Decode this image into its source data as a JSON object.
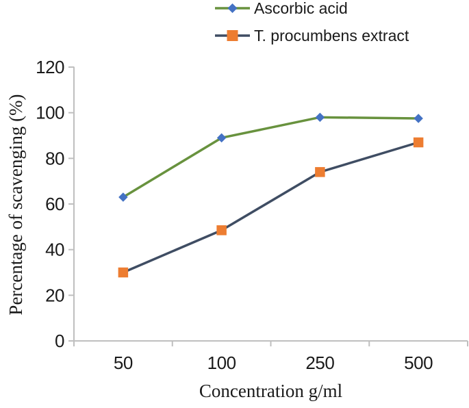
{
  "figure": {
    "background": "#ffffff"
  },
  "legend": {
    "position": "top",
    "items": [
      {
        "label": "Ascorbic acid",
        "marker": "diamond"
      },
      {
        "label": "T. procumbens extract",
        "marker": "square"
      }
    ]
  },
  "chart_data": {
    "type": "line",
    "title": "",
    "xlabel": "Concentration g/ml",
    "ylabel": "Percentage of scavenging (%)",
    "categories": [
      "50",
      "100",
      "250",
      "500"
    ],
    "series": [
      {
        "name": "Ascorbic acid",
        "values": [
          63,
          89,
          98,
          97.5
        ],
        "line_color": "#68923e",
        "marker": "diamond",
        "marker_color": "#4472c4"
      },
      {
        "name": "T. procumbens extract",
        "values": [
          30,
          48.5,
          74,
          87
        ],
        "line_color": "#3f4d63",
        "marker": "square",
        "marker_color": "#ed7d31"
      }
    ],
    "ylim": [
      0,
      120
    ],
    "y_ticks": [
      "0",
      "20",
      "40",
      "60",
      "80",
      "100",
      "120"
    ],
    "grid": false,
    "legend_position": "top",
    "axis_color": "#bfbfbf",
    "text_color": "#1a1a1a"
  }
}
